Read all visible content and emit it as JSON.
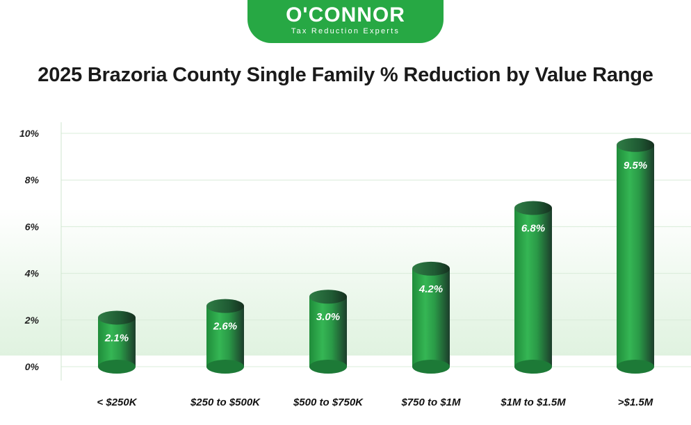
{
  "logo": {
    "name": "O'CONNOR",
    "tagline": "Tax Reduction Experts",
    "color": "#27a844"
  },
  "chart_data": {
    "type": "bar",
    "title": "2025 Brazoria County Single Family % Reduction by Value Range",
    "categories": [
      "< $250K",
      "$250 to $500K",
      "$500 to $750K",
      "$750 to $1M",
      "$1M to $1.5M",
      ">$1.5M"
    ],
    "values": [
      2.1,
      2.6,
      3.0,
      4.2,
      6.8,
      9.5
    ],
    "value_labels": [
      "2.1%",
      "2.6%",
      "3.0%",
      "4.2%",
      "6.8%",
      "9.5%"
    ],
    "y_ticks": [
      0,
      2,
      4,
      6,
      8,
      10
    ],
    "y_tick_labels": [
      "0%",
      "2%",
      "4%",
      "6%",
      "8%",
      "10%"
    ],
    "ylim": [
      0,
      10
    ],
    "grid": true,
    "legend": "none",
    "bar_style": "cylinder",
    "bar_color": "#2aa84a"
  }
}
